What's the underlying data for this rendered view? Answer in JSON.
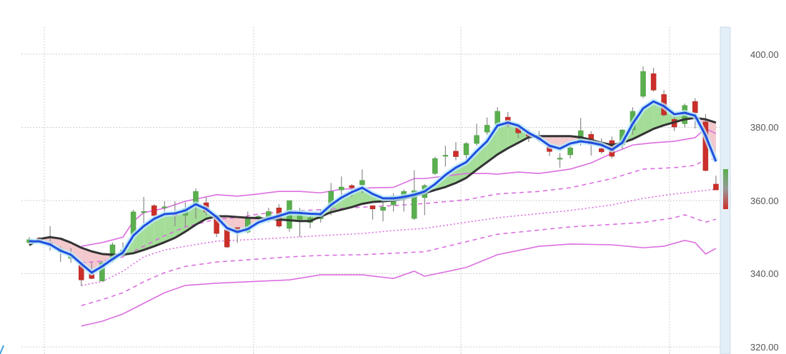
{
  "chart_data": {
    "type": "candlestick",
    "title": "",
    "xlabel": "",
    "ylabel": "",
    "ylim": [
      320,
      400
    ],
    "y_ticks": [
      "320.00",
      "340.00",
      "360.00",
      "380.00",
      "400.00"
    ],
    "y_tick_values": [
      320,
      340,
      360,
      380,
      400
    ],
    "grid": true,
    "candles_ohlc": [
      [
        348.5,
        350,
        348,
        349.3
      ],
      [
        349.8,
        350,
        348.5,
        348.9
      ],
      [
        348.5,
        353,
        346.3,
        347.7
      ],
      [
        346,
        347.5,
        343.2,
        346.8
      ],
      [
        344.2,
        347,
        343,
        345.2
      ],
      [
        342.4,
        342.7,
        336.6,
        338.3
      ],
      [
        340,
        343,
        338.5,
        338.7
      ],
      [
        338,
        343.5,
        338,
        343
      ],
      [
        343.6,
        348.5,
        343,
        347.9
      ],
      [
        346,
        348.6,
        344.8,
        346.5
      ],
      [
        350.6,
        357.5,
        350,
        356.9
      ],
      [
        356.9,
        361,
        353,
        357
      ],
      [
        358.6,
        359,
        354,
        355.9
      ],
      [
        358.2,
        359.8,
        356.5,
        358.3
      ],
      [
        356.5,
        359.8,
        353,
        355.9
      ],
      [
        356,
        359.5,
        353,
        357.8
      ],
      [
        358.8,
        363.3,
        355,
        362.5
      ],
      [
        359.4,
        361,
        356,
        356.9
      ],
      [
        355.7,
        356,
        350,
        351
      ],
      [
        352,
        352.5,
        347,
        347.3
      ],
      [
        352.6,
        352.6,
        348.4,
        351.2
      ],
      [
        351.4,
        357,
        351,
        355.3
      ],
      [
        355.1,
        356,
        354.5,
        355.7
      ],
      [
        354.7,
        358,
        354,
        357
      ],
      [
        358,
        359,
        352.6,
        353
      ],
      [
        352.4,
        360,
        351.5,
        360
      ],
      [
        354.9,
        358,
        350,
        357.1
      ],
      [
        354,
        356,
        352.4,
        355.3
      ],
      [
        355,
        357.7,
        354,
        356.3
      ],
      [
        358.2,
        364.8,
        356,
        362.5
      ],
      [
        362.9,
        366.6,
        361,
        363.7
      ],
      [
        364.1,
        364.5,
        361,
        363.5
      ],
      [
        364.3,
        368.5,
        362,
        365.5
      ],
      [
        358.6,
        358.6,
        354.8,
        357.7
      ],
      [
        357.3,
        359.5,
        354.3,
        358.2
      ],
      [
        358.8,
        362,
        357,
        361.2
      ],
      [
        360.8,
        363,
        357,
        362.5
      ],
      [
        355.1,
        368.3,
        354.7,
        362.7
      ],
      [
        360.8,
        364.5,
        356,
        364.1
      ],
      [
        367.4,
        372,
        367,
        371.5
      ],
      [
        372.2,
        375,
        369.3,
        372.4
      ],
      [
        373.5,
        376,
        371,
        372
      ],
      [
        372.5,
        376,
        371,
        375.6
      ],
      [
        375.6,
        381,
        375,
        377.8
      ],
      [
        378.7,
        382.7,
        378,
        380.6
      ],
      [
        380.7,
        385.5,
        380,
        384.4
      ],
      [
        382.8,
        384.2,
        380,
        380.5
      ],
      [
        380,
        381,
        377,
        378.5
      ],
      [
        378.5,
        379.5,
        376,
        377.6
      ],
      [
        377.8,
        379,
        376,
        376.6
      ],
      [
        374.8,
        375,
        372.2,
        373.4
      ],
      [
        371.5,
        373,
        369,
        371.6
      ],
      [
        372.5,
        375,
        371.5,
        374.4
      ],
      [
        376.2,
        382.6,
        375,
        379.1
      ],
      [
        378.1,
        379,
        372.3,
        375.4
      ],
      [
        374.2,
        377,
        372.8,
        373.3
      ],
      [
        376.4,
        377.5,
        371.5,
        372.1
      ],
      [
        375.2,
        379.5,
        374,
        379.3
      ],
      [
        379.3,
        385.5,
        378,
        384.4
      ],
      [
        388.5,
        396.7,
        388,
        395.3
      ],
      [
        394.7,
        396.3,
        389.8,
        390.2
      ],
      [
        389,
        390.2,
        383,
        383.4
      ],
      [
        382.2,
        383,
        379,
        380.1
      ],
      [
        381,
        386.5,
        380,
        386
      ],
      [
        387.1,
        388,
        379.7,
        384
      ],
      [
        381.5,
        383.6,
        368,
        368.2
      ],
      [
        364.5,
        366.8,
        362.9,
        362.9
      ]
    ],
    "fast_line": [
      348.9,
      348.8,
      348,
      346.3,
      345.2,
      342.7,
      340.3,
      342,
      344,
      345.8,
      350.4,
      353,
      355,
      356.3,
      356.5,
      357.3,
      359,
      357.7,
      355.5,
      352.5,
      351.4,
      352.2,
      354,
      355,
      355.8,
      356.7,
      356.6,
      356.4,
      356.3,
      358.8,
      360.8,
      362.3,
      363.5,
      361.8,
      360.6,
      360.6,
      361,
      361.6,
      362.5,
      364.5,
      367,
      369,
      370.5,
      373.5,
      376.2,
      380.5,
      381.3,
      380.5,
      378.5,
      377,
      375,
      374.2,
      375.6,
      376.2,
      375.8,
      375.2,
      373.9,
      375.8,
      381,
      385.2,
      387.1,
      385.8,
      383.6,
      384,
      383.2,
      377.8,
      370.7
    ],
    "slow_line": [
      347.8,
      349.5,
      350,
      349.6,
      348.5,
      347.1,
      346.1,
      345.4,
      345.2,
      345.2,
      345.6,
      346.5,
      347.5,
      348.6,
      349.8,
      351.5,
      353.4,
      355,
      355.7,
      355.7,
      355.5,
      355.3,
      355.2,
      355,
      354.8,
      354.6,
      354.4,
      354.4,
      355.6,
      356.8,
      357.5,
      358.2,
      359.1,
      359.6,
      359.8,
      360,
      360.5,
      361.2,
      362,
      362.9,
      363.7,
      364.8,
      366.2,
      368.4,
      370.5,
      372.6,
      374.3,
      375.8,
      377.3,
      377.6,
      377.6,
      377.6,
      377.6,
      377.3,
      376.6,
      375.8,
      375.2,
      375.8,
      376.8,
      378.2,
      379.6,
      380.6,
      381.4,
      382.2,
      382.6,
      382.2,
      381.3
    ],
    "bands": [
      {
        "style": "solid",
        "points": [
          [
            5,
            347.5
          ],
          [
            7,
            348.5
          ],
          [
            9,
            350
          ],
          [
            10,
            354.3
          ],
          [
            11,
            356.7
          ],
          [
            13,
            357.9
          ],
          [
            15,
            359.8
          ],
          [
            18,
            361.6
          ],
          [
            20,
            361.2
          ],
          [
            22,
            361.8
          ],
          [
            24,
            362.5
          ],
          [
            26,
            362.5
          ],
          [
            28,
            362.1
          ],
          [
            30,
            363.1
          ],
          [
            33,
            363.5
          ],
          [
            35,
            363.6
          ],
          [
            37,
            366
          ],
          [
            38,
            366
          ],
          [
            42,
            367.4
          ],
          [
            44,
            367.4
          ],
          [
            45,
            367.2
          ],
          [
            47,
            367.8
          ],
          [
            49,
            367.4
          ],
          [
            52,
            368.6
          ],
          [
            54,
            370.3
          ],
          [
            56,
            372.9
          ],
          [
            58,
            375.2
          ],
          [
            60,
            375.8
          ],
          [
            62,
            376.2
          ],
          [
            64,
            377.2
          ],
          [
            65,
            379.7
          ],
          [
            66,
            378.3
          ]
        ]
      },
      {
        "style": "dashed",
        "points": [
          [
            5,
            343
          ],
          [
            7,
            343.4
          ],
          [
            9,
            344.6
          ],
          [
            11,
            347.5
          ],
          [
            13,
            350.4
          ],
          [
            15,
            352.8
          ],
          [
            18,
            354.9
          ],
          [
            20,
            355.3
          ],
          [
            22,
            356.3
          ],
          [
            25,
            357.1
          ],
          [
            28,
            357.5
          ],
          [
            32,
            358.2
          ],
          [
            35,
            358.6
          ],
          [
            38,
            359.2
          ],
          [
            42,
            360.2
          ],
          [
            45,
            361.8
          ],
          [
            49,
            362.5
          ],
          [
            52,
            363.5
          ],
          [
            56,
            366
          ],
          [
            59,
            368.6
          ],
          [
            62,
            369
          ],
          [
            64,
            369.6
          ],
          [
            65,
            371.3
          ],
          [
            66,
            371.3
          ]
        ]
      },
      {
        "style": "dotted",
        "points": [
          [
            5,
            336.8
          ],
          [
            7,
            337.8
          ],
          [
            9,
            340.7
          ],
          [
            11,
            344.6
          ],
          [
            13,
            346.5
          ],
          [
            15,
            347.5
          ],
          [
            18,
            348.9
          ],
          [
            21,
            349.3
          ],
          [
            25,
            349.9
          ],
          [
            28,
            350.4
          ],
          [
            32,
            351
          ],
          [
            35,
            351.8
          ],
          [
            38,
            352.4
          ],
          [
            45,
            355.3
          ],
          [
            52,
            357.3
          ],
          [
            56,
            358.8
          ],
          [
            59,
            360.6
          ],
          [
            62,
            361.8
          ],
          [
            66,
            363.1
          ]
        ]
      },
      {
        "style": "dashed",
        "points": [
          [
            5,
            331.3
          ],
          [
            7,
            332.9
          ],
          [
            9,
            334.8
          ],
          [
            11,
            337.8
          ],
          [
            13,
            340.3
          ],
          [
            15,
            342
          ],
          [
            18,
            343.2
          ],
          [
            21,
            343.8
          ],
          [
            25,
            344.6
          ],
          [
            28,
            345
          ],
          [
            32,
            345.2
          ],
          [
            35,
            345.6
          ],
          [
            38,
            346
          ],
          [
            45,
            350.8
          ],
          [
            52,
            352.8
          ],
          [
            59,
            354
          ],
          [
            62,
            355.3
          ],
          [
            63,
            356.1
          ],
          [
            65,
            354.1
          ],
          [
            66,
            354.9
          ]
        ]
      },
      {
        "style": "solid",
        "points": [
          [
            5,
            325.7
          ],
          [
            7,
            327
          ],
          [
            9,
            329
          ],
          [
            11,
            331.9
          ],
          [
            13,
            334.8
          ],
          [
            15,
            336.8
          ],
          [
            18,
            337.4
          ],
          [
            21,
            337.8
          ],
          [
            25,
            338.3
          ],
          [
            28,
            339.7
          ],
          [
            32,
            339.7
          ],
          [
            35,
            338.7
          ],
          [
            37,
            340.7
          ],
          [
            38,
            339.3
          ],
          [
            42,
            341.7
          ],
          [
            45,
            345.2
          ],
          [
            49,
            347.5
          ],
          [
            52,
            348.1
          ],
          [
            56,
            347.9
          ],
          [
            59,
            347.1
          ],
          [
            61,
            347.5
          ],
          [
            63,
            349.1
          ],
          [
            64,
            348.5
          ],
          [
            65,
            345.4
          ],
          [
            66,
            346.9
          ]
        ]
      }
    ],
    "colors": {
      "up": "#5aaf4e",
      "down": "#cc2f2a",
      "wick": "#8a8a8a",
      "fast_line": "#1f4fe0",
      "fast_glow": "#bfeafa",
      "slow_line": "#333333",
      "fill_above": "#a4dd98",
      "fill_below": "#f3c9cd",
      "bands": "#dc6ee0",
      "grid": "#cfcfcf",
      "scrollbar": "#e4eef6"
    }
  }
}
